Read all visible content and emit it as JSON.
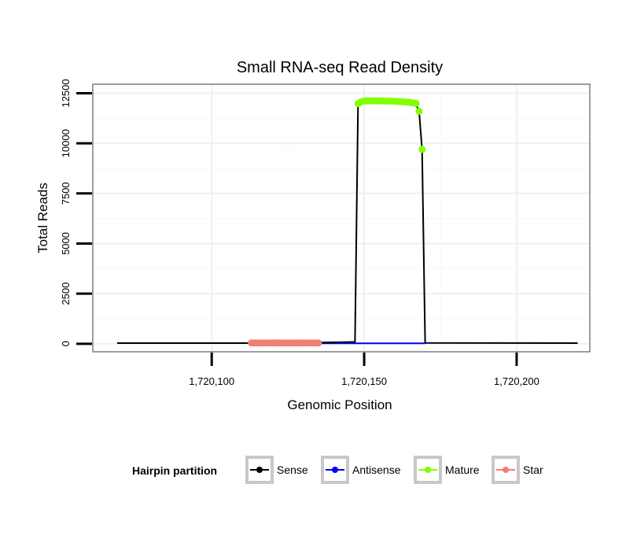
{
  "chart_data": {
    "type": "line",
    "title": "Small RNA-seq Read Density",
    "xlabel": "Genomic Position",
    "ylabel": "Total Reads",
    "xlim": [
      1720061,
      1720224
    ],
    "ylim": [
      -400,
      12950
    ],
    "x_ticks": [
      1720100,
      1720150,
      1720200
    ],
    "x_tick_labels": [
      "1,720,100",
      "1,720,150",
      "1,720,200"
    ],
    "y_ticks": [
      0,
      2500,
      5000,
      7500,
      10000,
      12500
    ],
    "y_tick_labels": [
      "0",
      "2500",
      "5000",
      "7500",
      "10000",
      "12500"
    ],
    "grid": true,
    "legend": {
      "title": "Hairpin partition",
      "position": "bottom",
      "entries": [
        "Sense",
        "Antisense",
        "Mature",
        "Star"
      ]
    },
    "series": [
      {
        "name": "Sense",
        "color": "#000000",
        "x": [
          1720069,
          1720113,
          1720136,
          1720147,
          1720148,
          1720149,
          1720155,
          1720160,
          1720165,
          1720167,
          1720168,
          1720169,
          1720170,
          1720220
        ],
        "y": [
          30,
          30,
          60,
          90,
          12000,
          12100,
          12120,
          12100,
          12000,
          11950,
          11600,
          9700,
          40,
          30
        ]
      },
      {
        "name": "Antisense",
        "color": "#0000ff",
        "x": [
          1720136,
          1720170
        ],
        "y": [
          20,
          20
        ]
      },
      {
        "name": "Mature",
        "color": "#80ff00",
        "x": [
          1720148,
          1720149,
          1720150,
          1720151,
          1720152,
          1720153,
          1720154,
          1720155,
          1720156,
          1720157,
          1720158,
          1720159,
          1720160,
          1720161,
          1720162,
          1720163,
          1720164,
          1720165,
          1720166,
          1720167,
          1720168,
          1720169
        ],
        "y": [
          11980,
          12080,
          12110,
          12120,
          12120,
          12120,
          12120,
          12120,
          12115,
          12110,
          12110,
          12105,
          12100,
          12090,
          12080,
          12070,
          12060,
          12040,
          12020,
          11990,
          11600,
          9700
        ]
      },
      {
        "name": "Star",
        "color": "#f08070",
        "x": [
          1720113,
          1720114,
          1720115,
          1720116,
          1720117,
          1720118,
          1720119,
          1720120,
          1720121,
          1720122,
          1720123,
          1720124,
          1720125,
          1720126,
          1720127,
          1720128,
          1720129,
          1720130,
          1720131,
          1720132,
          1720133,
          1720134,
          1720135
        ],
        "y": [
          40,
          40,
          40,
          40,
          40,
          40,
          40,
          40,
          40,
          40,
          40,
          40,
          40,
          40,
          40,
          40,
          40,
          40,
          40,
          40,
          40,
          40,
          40
        ]
      }
    ]
  }
}
